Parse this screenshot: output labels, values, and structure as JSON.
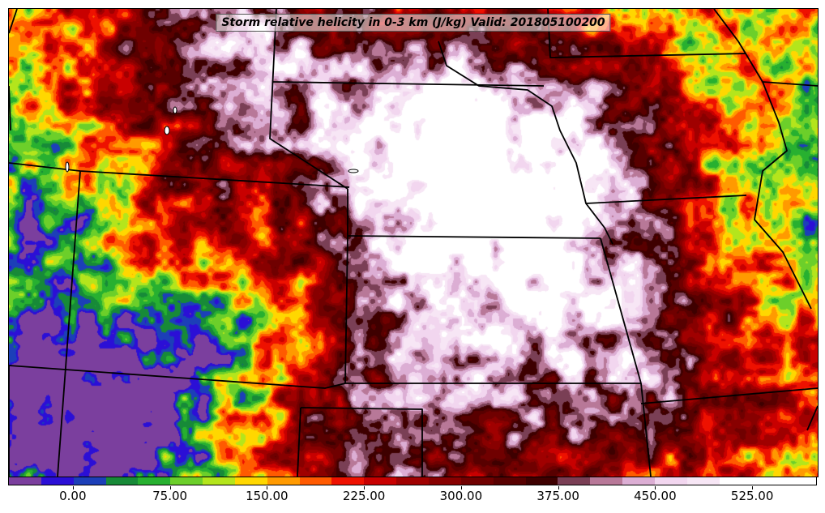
{
  "map": {
    "title": "Storm relative helicity in 0-3 km (J/kg) Valid: 201805100200",
    "variable": "Storm relative helicity in 0-3 km",
    "units": "J/kg",
    "valid_time": "201805100200"
  },
  "colorbar": {
    "min": -50,
    "max": 575,
    "step": 25,
    "colors": [
      "#7b3f9e",
      "#2b0fd6",
      "#1c3fb8",
      "#178a38",
      "#27b030",
      "#6ccf2a",
      "#b4e51c",
      "#ffd700",
      "#ff9a00",
      "#ff5a00",
      "#ee1100",
      "#c80000",
      "#a00000",
      "#880000",
      "#700000",
      "#580000",
      "#3e0000",
      "#7a3f55",
      "#b87898",
      "#dcaed4",
      "#f2d6ef",
      "#f7e6f5",
      "#ffffff",
      "#ffffff",
      "#ffffff"
    ],
    "tick_labels": [
      "0.00",
      "75.00",
      "150.00",
      "225.00",
      "300.00",
      "375.00",
      "450.00",
      "525.00"
    ],
    "tick_values": [
      0,
      75,
      150,
      225,
      300,
      375,
      450,
      525
    ]
  }
}
